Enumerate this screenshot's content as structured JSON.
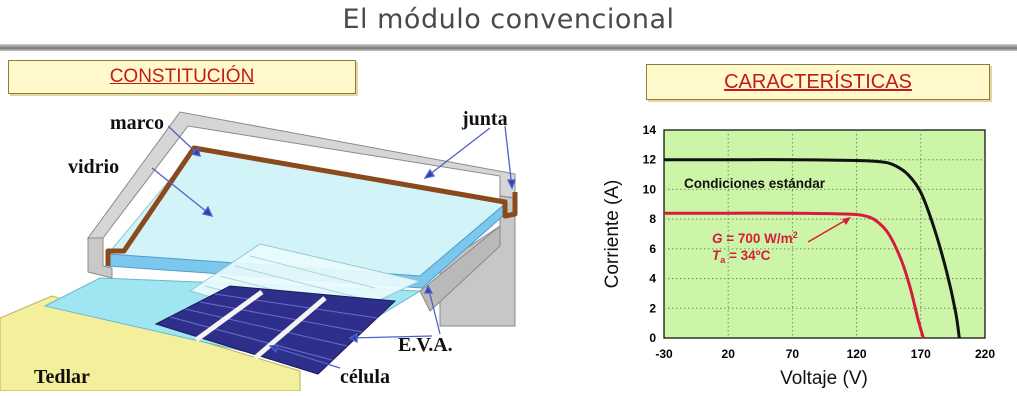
{
  "title": "El módulo convencional",
  "sections": {
    "constitucion": "CONSTITUCIÓN",
    "caracteristicas": "CARACTERÍSTICAS"
  },
  "diagram_labels": {
    "marco": "marco",
    "vidrio": "vidrio",
    "junta": "junta",
    "eva": "E.V.A.",
    "celula": "célula",
    "tedlar": "Tedlar"
  },
  "colors": {
    "frame": "#cfcfcf",
    "gasket": "#8b4a1c",
    "glass": "#cdf2f7",
    "eva": "#7cc7ee",
    "cell": "#2e2f8a",
    "tedlar": "#f3ef9a",
    "plot_bg": "#ccf5a8",
    "black_curve": "#111111",
    "red_curve": "#d81b3c"
  },
  "chart_data": {
    "type": "line",
    "xlabel": "Voltaje (V)",
    "ylabel": "Corriente (A)",
    "xlim": [
      -30,
      220
    ],
    "ylim": [
      0,
      14
    ],
    "x_ticks": [
      "-30",
      "20",
      "70",
      "120",
      "170",
      "220"
    ],
    "y_ticks": [
      "0",
      "2",
      "4",
      "6",
      "8",
      "10",
      "12",
      "14"
    ],
    "grid": true,
    "series": [
      {
        "name": "Condiciones estándar",
        "color": "#111111",
        "x": [
          -30,
          20,
          70,
          120,
          140,
          150,
          160,
          170,
          180,
          190,
          197,
          200
        ],
        "y": [
          12.0,
          12.0,
          12.0,
          11.95,
          11.85,
          11.6,
          11.0,
          9.8,
          7.5,
          4.5,
          1.8,
          0
        ]
      },
      {
        "name": "G = 700 W/m2, Ta = 34ºC",
        "color": "#d81b3c",
        "x": [
          -30,
          20,
          70,
          110,
          125,
          135,
          145,
          155,
          162,
          168,
          172
        ],
        "y": [
          8.4,
          8.4,
          8.4,
          8.35,
          8.25,
          7.9,
          7.0,
          5.2,
          3.3,
          1.2,
          0
        ]
      }
    ],
    "annotations": {
      "standard": "Condiciones estándar",
      "g_label": "G",
      "g_value": " = 700 W/m",
      "g_sup": "2",
      "t_label": "T",
      "t_sub": "a",
      "t_value": " = 34ºC"
    }
  }
}
